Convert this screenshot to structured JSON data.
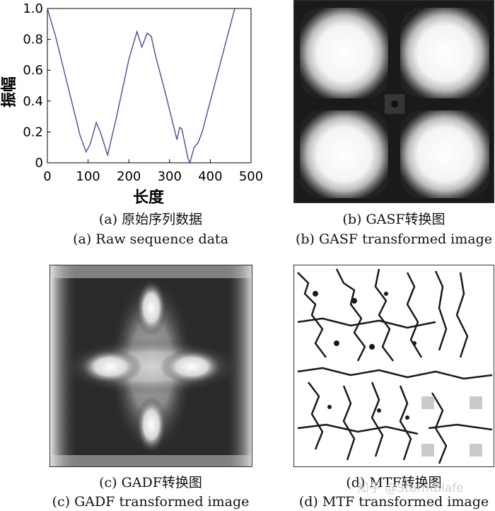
{
  "panel_a": {
    "caption_cn": "(a) 原始序列数据",
    "caption_en": "(a) Raw sequence data"
  },
  "panel_b": {
    "caption_cn": "(b) GASF转换图",
    "caption_en": "(b) GASF transformed image"
  },
  "panel_c": {
    "caption_cn": "(c) GADF转换图",
    "caption_en": "(c) GADF transformed image"
  },
  "panel_d": {
    "caption_cn": "(d) MTF转换图",
    "caption_en": "(d) MTF transformed image"
  },
  "watermark": "知乎 @StormBlafe",
  "chart_data": {
    "type": "line",
    "title": "",
    "xlabel": "长度",
    "ylabel": "振幅",
    "xlim": [
      0,
      500
    ],
    "ylim": [
      0,
      1.0
    ],
    "xticks": [
      "0",
      "100",
      "200",
      "300",
      "400",
      "500"
    ],
    "yticks": [
      "0",
      "0.2",
      "0.4",
      "0.6",
      "0.8",
      "1.0"
    ],
    "grid": false,
    "line_color": "#4a4a9a",
    "series": [
      {
        "x": [
          0,
          20,
          50,
          80,
          95,
          105,
          120,
          130,
          148,
          170,
          200,
          220,
          232,
          245,
          255,
          265,
          290,
          318,
          325,
          330,
          345,
          350,
          360,
          370,
          380,
          400,
          430,
          460
        ],
        "y": [
          1.0,
          0.82,
          0.5,
          0.18,
          0.07,
          0.12,
          0.26,
          0.2,
          0.05,
          0.3,
          0.67,
          0.85,
          0.75,
          0.84,
          0.82,
          0.7,
          0.45,
          0.15,
          0.23,
          0.22,
          0.03,
          0.0,
          0.1,
          0.13,
          0.2,
          0.4,
          0.7,
          1.0
        ]
      }
    ]
  }
}
